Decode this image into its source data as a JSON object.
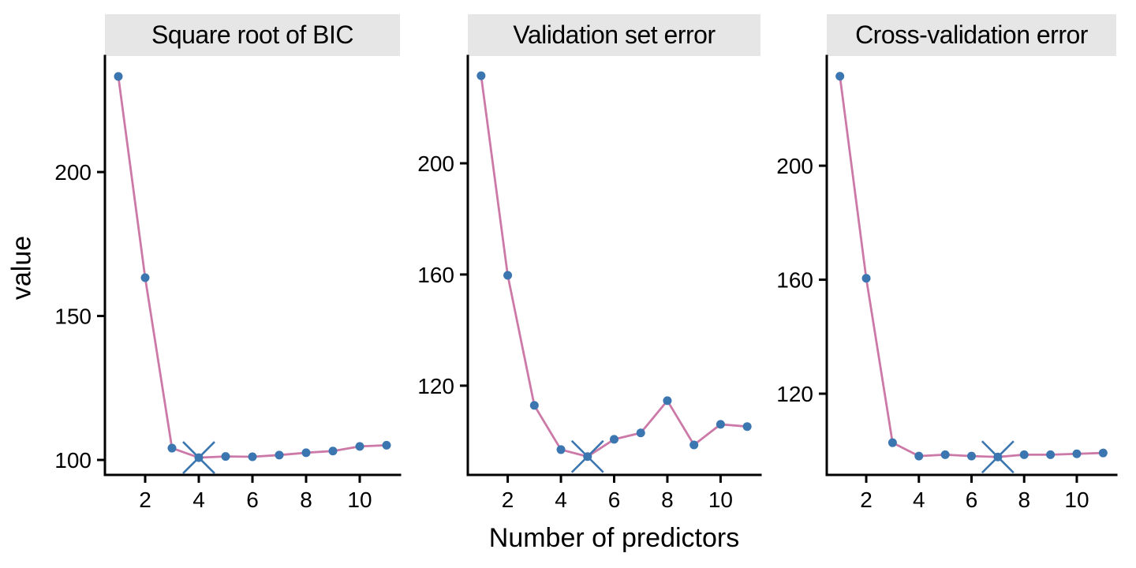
{
  "figure": {
    "colors": {
      "line": "#cc79a7",
      "point": "#3b76b0",
      "marker": "#3b76b0",
      "strip_bg": "#e6e6e6",
      "axis": "#000000",
      "text": "#000000"
    }
  },
  "chart_data": {
    "type": "line",
    "xlabel": "Number of predictors",
    "ylabel": "value",
    "x": [
      1,
      2,
      3,
      4,
      5,
      6,
      7,
      8,
      9,
      10,
      11
    ],
    "xlim": [
      0.5,
      11.5
    ],
    "x_ticks": [
      2,
      4,
      6,
      8,
      10
    ],
    "grid": "off",
    "legend": "none",
    "panels": [
      {
        "title": "Square root of BIC",
        "y_ticks": [
          100,
          150,
          200
        ],
        "ylim": [
          94.8,
          240.3
        ],
        "values": [
          233.2,
          163.3,
          104.1,
          100.8,
          101.2,
          101.1,
          101.7,
          102.5,
          103.1,
          104.7,
          105.1
        ],
        "marked_x": 4,
        "marked_value": 100.8
      },
      {
        "title": "Validation set error",
        "y_ticks": [
          120,
          160,
          200
        ],
        "ylim": [
          87.9,
          238.6
        ],
        "values": [
          231.5,
          159.7,
          112.9,
          97.0,
          94.5,
          100.7,
          103.0,
          114.6,
          98.7,
          106.1,
          105.3
        ],
        "marked_x": 5,
        "marked_value": 94.5
      },
      {
        "title": "Cross-validation error",
        "y_ticks": [
          120,
          160,
          200
        ],
        "ylim": [
          91.5,
          238.5
        ],
        "values": [
          231.4,
          160.5,
          102.8,
          98.1,
          98.6,
          98.1,
          97.8,
          98.6,
          98.6,
          98.9,
          99.2
        ],
        "marked_x": 7,
        "marked_value": 97.8
      }
    ]
  }
}
